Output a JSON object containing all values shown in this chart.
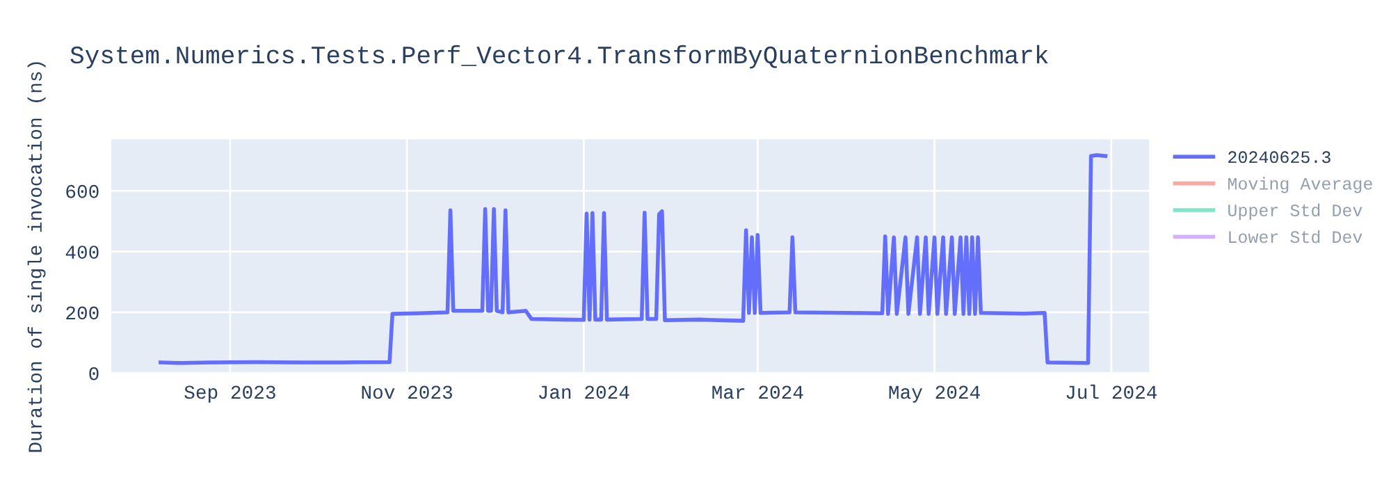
{
  "chart_data": {
    "type": "line",
    "title": "System.Numerics.Tests.Perf_Vector4.TransformByQuaternionBenchmark",
    "ylabel": "Duration of single invocation (ns)",
    "xlim": [
      "2023-07-22",
      "2024-07-14"
    ],
    "xticks": [
      {
        "value": "2023-09-01",
        "label": "Sep 2023"
      },
      {
        "value": "2023-11-01",
        "label": "Nov 2023"
      },
      {
        "value": "2024-01-01",
        "label": "Jan 2024"
      },
      {
        "value": "2024-03-01",
        "label": "Mar 2024"
      },
      {
        "value": "2024-05-01",
        "label": "May 2024"
      },
      {
        "value": "2024-07-01",
        "label": "Jul 2024"
      }
    ],
    "ylim": [
      0,
      770
    ],
    "yticks": [
      0,
      200,
      400,
      600
    ],
    "grid": true,
    "legend": "top right",
    "series": [
      {
        "name": "20240625.3",
        "color": "#636efa",
        "x": [
          "2023-08-08",
          "2023-08-15",
          "2023-08-25",
          "2023-09-10",
          "2023-09-25",
          "2023-10-10",
          "2023-10-26",
          "2023-10-27",
          "2023-11-05",
          "2023-11-15",
          "2023-11-16",
          "2023-11-17",
          "2023-11-27",
          "2023-11-28",
          "2023-11-29",
          "2023-11-30",
          "2023-12-01",
          "2023-12-02",
          "2023-12-04",
          "2023-12-05",
          "2023-12-06",
          "2023-12-12",
          "2023-12-14",
          "2023-12-25",
          "2024-01-01",
          "2024-01-02",
          "2024-01-03",
          "2024-01-04",
          "2024-01-05",
          "2024-01-07",
          "2024-01-08",
          "2024-01-09",
          "2024-01-21",
          "2024-01-22",
          "2024-01-23",
          "2024-01-26",
          "2024-01-27",
          "2024-01-28",
          "2024-01-29",
          "2024-02-10",
          "2024-02-25",
          "2024-02-26",
          "2024-02-27",
          "2024-02-28",
          "2024-02-29",
          "2024-03-01",
          "2024-03-02",
          "2024-03-12",
          "2024-03-13",
          "2024-03-14",
          "2024-04-01",
          "2024-04-13",
          "2024-04-14",
          "2024-04-15",
          "2024-04-17",
          "2024-04-18",
          "2024-04-21",
          "2024-04-22",
          "2024-04-25",
          "2024-04-26",
          "2024-04-28",
          "2024-04-29",
          "2024-05-01",
          "2024-05-02",
          "2024-05-04",
          "2024-05-05",
          "2024-05-07",
          "2024-05-08",
          "2024-05-10",
          "2024-05-11",
          "2024-05-12",
          "2024-05-13",
          "2024-05-14",
          "2024-05-15",
          "2024-05-16",
          "2024-05-17",
          "2024-06-01",
          "2024-06-08",
          "2024-06-09",
          "2024-06-23",
          "2024-06-24",
          "2024-06-26",
          "2024-06-29"
        ],
        "values": [
          35,
          33,
          35,
          36,
          35,
          35,
          36,
          195,
          197,
          200,
          536,
          205,
          205,
          540,
          205,
          205,
          540,
          205,
          200,
          536,
          200,
          205,
          178,
          176,
          175,
          525,
          176,
          527,
          176,
          176,
          527,
          176,
          178,
          528,
          178,
          178,
          523,
          533,
          174,
          176,
          172,
          470,
          198,
          447,
          198,
          455,
          198,
          200,
          447,
          200,
          198,
          197,
          450,
          195,
          447,
          195,
          447,
          195,
          447,
          195,
          447,
          195,
          447,
          195,
          447,
          195,
          447,
          195,
          447,
          195,
          447,
          195,
          447,
          195,
          447,
          198,
          196,
          198,
          35,
          33,
          715,
          718,
          715
        ]
      },
      {
        "name": "Moving Average",
        "color": "#ef553b"
      },
      {
        "name": "Upper Std Dev",
        "color": "#00cc96"
      },
      {
        "name": "Lower Std Dev",
        "color": "#ab63fa"
      }
    ]
  }
}
